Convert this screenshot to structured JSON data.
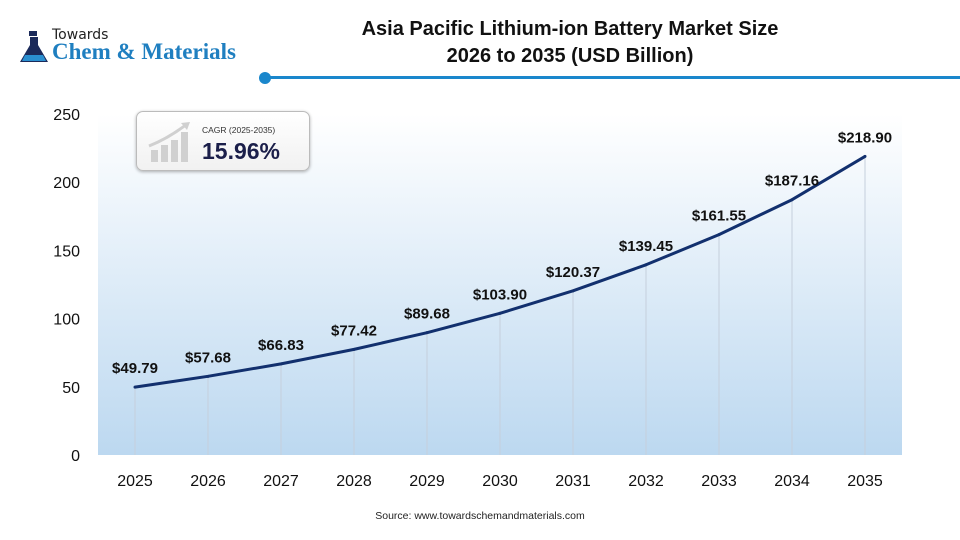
{
  "logo": {
    "line1": "Towards",
    "line2": "Chem & Materials"
  },
  "title": {
    "line1": "Asia Pacific Lithium-ion Battery Market Size",
    "line2": "2026 to 2035 (USD Billion)"
  },
  "cagr": {
    "label": "CAGR (2025-2035)",
    "value": "15.96%"
  },
  "source": "Source: www.towardschemandmaterials.com",
  "colors": {
    "line": "#12306e",
    "accent": "#1a87cc",
    "fill_bottom": "#bcd8f0"
  },
  "chart_data": {
    "type": "line",
    "categories": [
      "2025",
      "2026",
      "2027",
      "2028",
      "2029",
      "2030",
      "2031",
      "2032",
      "2033",
      "2034",
      "2035"
    ],
    "values": [
      49.79,
      57.68,
      66.83,
      77.42,
      89.68,
      103.9,
      120.37,
      139.45,
      161.55,
      187.16,
      218.9
    ],
    "labels": [
      "$49.79",
      "$57.68",
      "$66.83",
      "$77.42",
      "$89.68",
      "$103.90",
      "$120.37",
      "$139.45",
      "$161.55",
      "$187.16",
      "$218.90"
    ],
    "yticks": [
      "0",
      "50",
      "100",
      "150",
      "200",
      "250"
    ],
    "ylim": [
      0,
      250
    ],
    "grid": "vertical lines at each category",
    "title": "Asia Pacific Lithium-ion Battery Market Size 2026 to 2035 (USD Billion)"
  }
}
